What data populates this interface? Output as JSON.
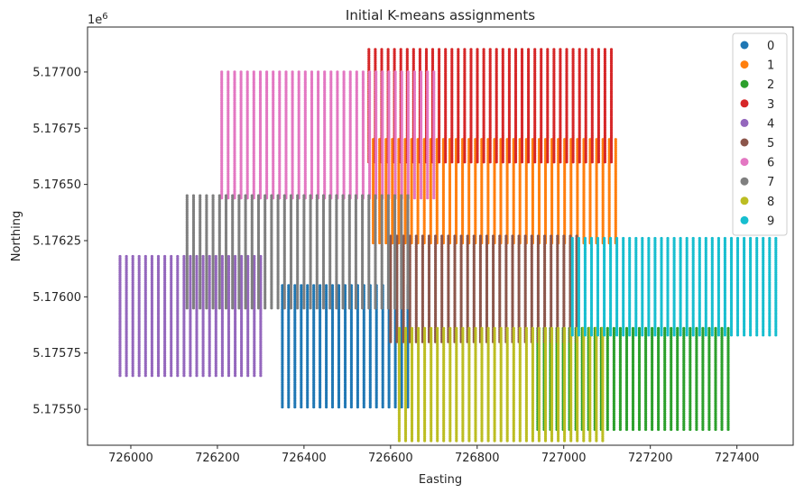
{
  "chart_data": {
    "type": "scatter",
    "title": "Initial K-means assignments",
    "xlabel": "Easting",
    "ylabel": "Northing",
    "y_offset_label": "1e6",
    "xlim": [
      725900,
      727530
    ],
    "ylim": [
      5175340,
      5177200
    ],
    "x_ticks": [
      726000,
      726200,
      726400,
      726600,
      726800,
      727000,
      727200,
      727400
    ],
    "x_tick_labels": [
      "726000",
      "726200",
      "726400",
      "726600",
      "726800",
      "727000",
      "727200",
      "727400"
    ],
    "y_ticks": [
      5175500,
      5175750,
      5176000,
      5176250,
      5176500,
      5176750,
      5177000
    ],
    "y_tick_labels": [
      "5.17550",
      "5.17575",
      "5.17600",
      "5.17625",
      "5.17650",
      "5.17675",
      "5.17700"
    ],
    "grid": false,
    "legend_position": "top-right",
    "series": [
      {
        "name": "0",
        "color": "#1f77b4",
        "x_range": [
          726350,
          726640
        ],
        "y_range": [
          5175510,
          5176050
        ]
      },
      {
        "name": "1",
        "color": "#ff7f0e",
        "x_range": [
          726560,
          727120
        ],
        "y_range": [
          5176240,
          5176700
        ]
      },
      {
        "name": "2",
        "color": "#2ca02c",
        "x_range": [
          726940,
          727380
        ],
        "y_range": [
          5175410,
          5175860
        ]
      },
      {
        "name": "3",
        "color": "#d62728",
        "x_range": [
          726550,
          727110
        ],
        "y_range": [
          5176600,
          5177100
        ]
      },
      {
        "name": "4",
        "color": "#9467bd",
        "x_range": [
          725975,
          726300
        ],
        "y_range": [
          5175650,
          5176180
        ]
      },
      {
        "name": "5",
        "color": "#8c564b",
        "x_range": [
          726600,
          727030
        ],
        "y_range": [
          5175800,
          5176270
        ]
      },
      {
        "name": "6",
        "color": "#e377c2",
        "x_range": [
          726210,
          726700
        ],
        "y_range": [
          5176440,
          5177000
        ]
      },
      {
        "name": "7",
        "color": "#7f7f7f",
        "x_range": [
          726130,
          726640
        ],
        "y_range": [
          5175950,
          5176450
        ]
      },
      {
        "name": "8",
        "color": "#bcbd22",
        "x_range": [
          726620,
          727090
        ],
        "y_range": [
          5175360,
          5175860
        ]
      },
      {
        "name": "9",
        "color": "#17becf",
        "x_range": [
          727020,
          727490
        ],
        "y_range": [
          5175830,
          5176260
        ]
      }
    ]
  }
}
